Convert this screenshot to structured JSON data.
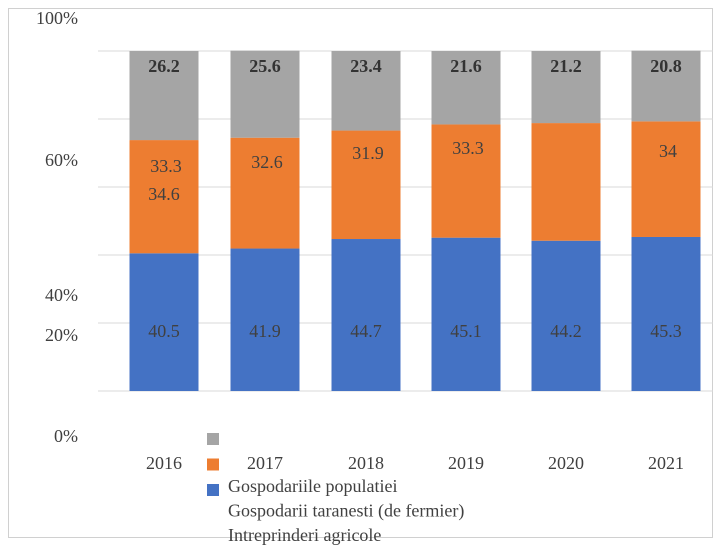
{
  "chart_data": {
    "type": "stacked_bar",
    "categories": [
      "2016",
      "2017",
      "2018",
      "2019",
      "2020",
      "2021"
    ],
    "series": [
      {
        "name": "Gospodariile populatiei",
        "color": "#4472c4",
        "values": [
          40.5,
          41.9,
          44.7,
          45.1,
          44.2,
          45.3
        ]
      },
      {
        "name": "Gospodarii taranesti (de fermier)",
        "color": "#ed7d31",
        "values": [
          33.3,
          32.6,
          31.9,
          33.3,
          34.6,
          34.0
        ]
      },
      {
        "name": "Intreprinderi agricole",
        "color": "#a5a5a5",
        "values": [
          26.2,
          25.6,
          23.4,
          21.6,
          21.2,
          20.8
        ]
      }
    ],
    "ylim": [
      0,
      100
    ],
    "yticks": [
      {
        "value": 0,
        "label": "0%"
      },
      {
        "value": 20,
        "label": "20%"
      },
      {
        "value": 40,
        "label": "40%"
      },
      {
        "value": 60,
        "label": "60%"
      },
      {
        "value": 100,
        "label": "100%"
      }
    ],
    "grid": true
  }
}
